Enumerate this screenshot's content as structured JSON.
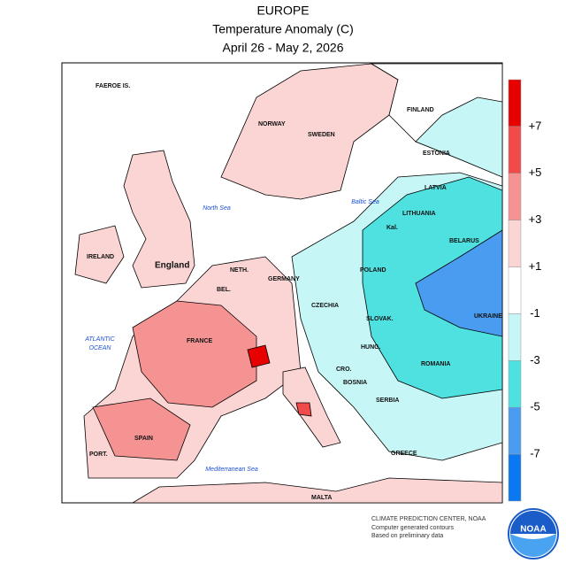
{
  "header": {
    "title": "EUROPE",
    "subtitle": "Temperature Anomaly (C)",
    "period": "April 26 - May 2, 2026"
  },
  "map": {
    "labels": [
      "FAEROE IS.",
      "NORWAY",
      "SWEDEN",
      "FINLAND",
      "ESTONIA",
      "North Sea",
      "Baltic Sea",
      "LATVIA",
      "LITHUANIA",
      "IRELAND",
      "England",
      "NETH.",
      "BEL.",
      "GERMANY",
      "POLAND",
      "BELARUS",
      "CZECHIA",
      "SLOVAK.",
      "UKRAINE",
      "FRANCE",
      "ATLANTIC",
      "OCEAN",
      "HUNG.",
      "ROMANIA",
      "CRO.",
      "BOSNIA",
      "SERBIA",
      "SPAIN",
      "PORT.",
      "Mediterranean Sea",
      "MALTA",
      "GREECE",
      "Kal."
    ]
  },
  "legend": {
    "colors": [
      "#e60000",
      "#f04a4a",
      "#f59393",
      "#fbd4d4",
      "#ffffff",
      "#c6f6f6",
      "#4fe0e0",
      "#4a9cf0",
      "#0a78f0"
    ],
    "labels": [
      "+7",
      "+5",
      "+3",
      "+1",
      "-1",
      "-3",
      "-5",
      "-7"
    ]
  },
  "credits": [
    "CLIMATE PREDICTION CENTER, NOAA",
    "Computer generated contours",
    "Based on preliminary data"
  ],
  "logo": "NOAA"
}
